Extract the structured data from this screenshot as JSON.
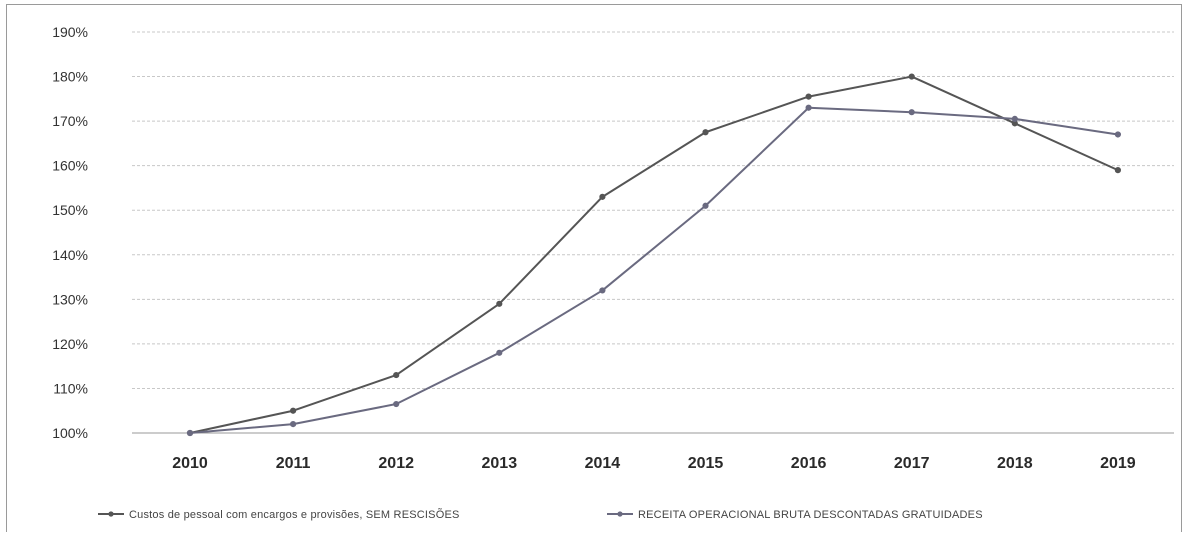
{
  "chart_data": {
    "type": "line",
    "title": "",
    "xlabel": "",
    "ylabel": "",
    "categories": [
      "2010",
      "2011",
      "2012",
      "2013",
      "2014",
      "2015",
      "2016",
      "2017",
      "2018",
      "2019"
    ],
    "y_ticks": [
      "100%",
      "110%",
      "120%",
      "130%",
      "140%",
      "150%",
      "160%",
      "170%",
      "180%",
      "190%"
    ],
    "ylim": [
      100,
      190
    ],
    "grid": true,
    "legend_position": "bottom",
    "series": [
      {
        "name": "Custos de pessoal com encargos e provisões, SEM RESCISÕES",
        "color": "#555555",
        "values": [
          100,
          105,
          113,
          129,
          153,
          167.5,
          175.5,
          180,
          169.5,
          159
        ]
      },
      {
        "name": "RECEITA OPERACIONAL BRUTA DESCONTADAS GRATUIDADES",
        "color": "#6a6a80",
        "values": [
          100,
          102,
          106.5,
          118,
          132,
          151,
          173,
          172,
          170.5,
          167
        ]
      }
    ]
  }
}
